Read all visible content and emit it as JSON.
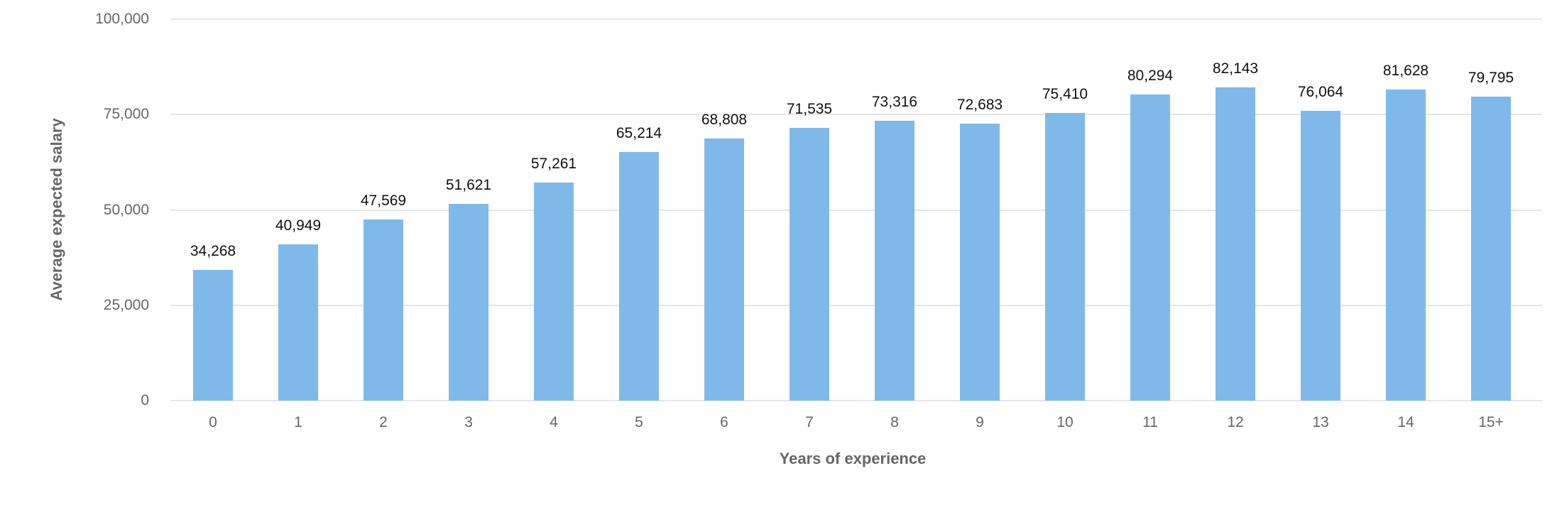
{
  "chart_data": {
    "type": "bar",
    "title": "",
    "xlabel": "Years of experience",
    "ylabel": "Average expected salary",
    "categories": [
      "0",
      "1",
      "2",
      "3",
      "4",
      "5",
      "6",
      "7",
      "8",
      "9",
      "10",
      "11",
      "12",
      "13",
      "14",
      "15+"
    ],
    "values": [
      34268,
      40949,
      47569,
      51621,
      57261,
      65214,
      68808,
      71535,
      73316,
      72683,
      75410,
      80294,
      82143,
      76064,
      81628,
      79795
    ],
    "value_labels": [
      "34,268",
      "40,949",
      "47,569",
      "51,621",
      "57,261",
      "65,214",
      "68,808",
      "71,535",
      "73,316",
      "72,683",
      "75,410",
      "80,294",
      "82,143",
      "76,064",
      "81,628",
      "79,795"
    ],
    "ylim": [
      0,
      100000
    ],
    "yticks": [
      0,
      25000,
      50000,
      75000,
      100000
    ],
    "ytick_labels": [
      "0",
      "25,000",
      "50,000",
      "75,000",
      "100,000"
    ],
    "grid": true,
    "legend": null,
    "colors": {
      "bar": "#7fb9ea",
      "grid": "#e6e6e6",
      "axis_text": "#666666",
      "value_text": "#111111"
    }
  },
  "axes": {
    "x_title": "Years of experience",
    "y_title": "Average expected salary"
  }
}
